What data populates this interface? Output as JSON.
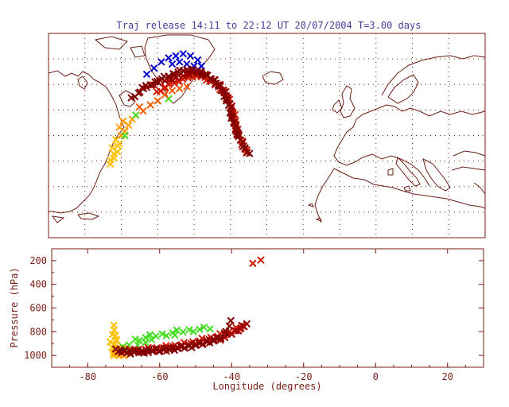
{
  "title": "Traj release 14:11 to 22:12 UT 20/07/2004    T=3.00 days",
  "colors": {
    "axis": "#7a1e14",
    "title": "#4a3a9a",
    "grid": "#7a1e14",
    "coast": "#6b1d12",
    "marker_palette": [
      "#0000cc",
      "#ffc000",
      "#ff9a00",
      "#ff5a00",
      "#d11a00",
      "#a00000",
      "#800000",
      "#44dd22"
    ]
  },
  "chart_data": [
    {
      "type": "scatter",
      "panel": "map",
      "xlim": [
        -90,
        30
      ],
      "ylim": [
        25,
        75
      ],
      "grid": true,
      "xlabel": "",
      "ylabel": "",
      "series": [
        {
          "color": "#0000cc",
          "x": [
            -55,
            -53,
            -51,
            -49,
            -57,
            -59,
            -52,
            -50,
            -54,
            -56,
            -48,
            -61,
            -63
          ],
          "y": [
            69.5,
            70,
            69.5,
            68.5,
            69,
            68,
            67.5,
            67,
            68,
            67.5,
            67,
            66.5,
            65
          ]
        },
        {
          "color": "#ffc000",
          "x": [
            -73,
            -72,
            -71,
            -72.5,
            -70.5,
            -71.5,
            -72,
            -73,
            -71
          ],
          "y": [
            43,
            44.5,
            46,
            47,
            48,
            49,
            45.5,
            44,
            47.5
          ]
        },
        {
          "color": "#ff9a00",
          "x": [
            -70,
            -69,
            -68,
            -67,
            -66,
            -70.5,
            -69.5
          ],
          "y": [
            50,
            51,
            52.5,
            54,
            55,
            52,
            53.5
          ]
        },
        {
          "color": "#44dd22",
          "x": [
            -69,
            -62,
            -57,
            -60,
            -66
          ],
          "y": [
            50,
            57.5,
            59,
            58.5,
            55
          ]
        },
        {
          "color": "#ff5a00",
          "x": [
            -64,
            -62,
            -60,
            -58,
            -56,
            -54,
            -52,
            -65
          ],
          "y": [
            56,
            57.5,
            58.5,
            60,
            61,
            61.5,
            62,
            57
          ]
        },
        {
          "color": "#d11a00",
          "x": [
            -60,
            -57,
            -54,
            -51,
            -48,
            -45,
            -42,
            -40,
            -39,
            -38.5,
            -37.5,
            -36.5,
            -35.5
          ],
          "y": [
            60.5,
            62.5,
            63.5,
            64.5,
            64.5,
            63,
            61,
            58,
            55,
            52,
            49.5,
            47.5,
            46
          ]
        },
        {
          "color": "#a00000",
          "x": [
            -64,
            -60,
            -56,
            -52,
            -49,
            -46,
            -43,
            -41,
            -40,
            -39,
            -38
          ],
          "y": [
            61.5,
            63,
            64,
            65,
            65.5,
            64.5,
            62.5,
            60,
            57,
            53.5,
            50
          ]
        },
        {
          "color": "#800000",
          "x": [
            -67,
            -64,
            -60,
            -56,
            -53,
            -50,
            -47,
            -44,
            -42,
            -40.5,
            -39.5,
            -38,
            -36.5,
            -35
          ],
          "y": [
            59,
            61.5,
            63.5,
            65,
            66,
            66,
            65,
            63,
            60.5,
            57.5,
            54,
            50.5,
            47.5,
            45.5
          ]
        }
      ]
    },
    {
      "type": "scatter",
      "panel": "pressure",
      "xlabel": "Longitude  (degrees)",
      "ylabel": "Pressure  (hPa)",
      "xlim": [
        -90,
        30
      ],
      "ylim": [
        1100,
        100
      ],
      "xticks": [
        "-80",
        "-60",
        "-40",
        "-20",
        "0",
        "20"
      ],
      "yticks": [
        "200",
        "400",
        "600",
        "800",
        "1000"
      ],
      "series": [
        {
          "color": "#ffc000",
          "x": [
            -73.5,
            -73,
            -72.5,
            -72,
            -73,
            -72.5,
            -71.5,
            -73
          ],
          "y": [
            900,
            950,
            980,
            870,
            810,
            760,
            960,
            1000
          ]
        },
        {
          "color": "#ff9a00",
          "x": [
            -72,
            -70.5,
            -69,
            -71,
            -68
          ],
          "y": [
            990,
            1000,
            980,
            930,
            960
          ]
        },
        {
          "color": "#44dd22",
          "x": [
            -70,
            -67,
            -64,
            -61,
            -58,
            -55,
            -52,
            -49,
            -46,
            -66,
            -62
          ],
          "y": [
            940,
            870,
            850,
            830,
            820,
            800,
            790,
            780,
            770,
            900,
            880
          ]
        },
        {
          "color": "#d11a00",
          "x": [
            -68,
            -64,
            -60,
            -56,
            -52,
            -48,
            -44,
            -40,
            -37,
            -34,
            -32
          ],
          "y": [
            960,
            950,
            940,
            920,
            900,
            870,
            840,
            800,
            760,
            210,
            195
          ]
        },
        {
          "color": "#a00000",
          "x": [
            -66,
            -62,
            -58,
            -54,
            -50,
            -46,
            -42,
            -38,
            -36
          ],
          "y": [
            970,
            960,
            950,
            930,
            910,
            880,
            850,
            780,
            740
          ]
        },
        {
          "color": "#800000",
          "x": [
            -72,
            -70,
            -68,
            -65,
            -62,
            -58,
            -55,
            -51,
            -47,
            -43,
            -40
          ],
          "y": [
            960,
            965,
            975,
            970,
            960,
            950,
            940,
            920,
            890,
            850,
            720
          ]
        }
      ]
    }
  ]
}
